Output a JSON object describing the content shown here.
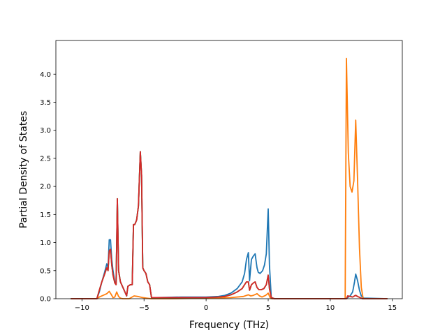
{
  "chart_data": {
    "type": "line",
    "title": "",
    "xlabel": "Frequency (THz)",
    "ylabel": "Partial Density of States",
    "xlim": [
      -12.1,
      15.8
    ],
    "ylim": [
      0,
      4.6
    ],
    "grid": false,
    "x_ticks": [
      -10,
      -5,
      0,
      5,
      10,
      15
    ],
    "x_tick_labels": [
      "−10",
      "−5",
      "0",
      "5",
      "10",
      "15"
    ],
    "y_ticks": [
      0.0,
      0.5,
      1.0,
      1.5,
      2.0,
      2.5,
      3.0,
      3.5,
      4.0
    ],
    "y_tick_labels": [
      "0.0",
      "0.5",
      "1.0",
      "1.5",
      "2.0",
      "2.5",
      "3.0",
      "3.5",
      "4.0"
    ],
    "series": [
      {
        "color": "#1f77b4",
        "points": [
          [
            -10.9,
            0
          ],
          [
            -8.8,
            0
          ],
          [
            -8.6,
            0.12
          ],
          [
            -8.4,
            0.3
          ],
          [
            -8.2,
            0.45
          ],
          [
            -8.0,
            0.62
          ],
          [
            -7.9,
            0.55
          ],
          [
            -7.8,
            1.05
          ],
          [
            -7.7,
            1.05
          ],
          [
            -7.6,
            0.7
          ],
          [
            -7.5,
            0.5
          ],
          [
            -7.35,
            0.3
          ],
          [
            -7.25,
            0.28
          ],
          [
            -7.15,
            1.78
          ],
          [
            -7.05,
            0.5
          ],
          [
            -6.9,
            0.3
          ],
          [
            -6.7,
            0.2
          ],
          [
            -6.5,
            0.1
          ],
          [
            -6.4,
            0.05
          ],
          [
            -6.3,
            0.22
          ],
          [
            -6.1,
            0.25
          ],
          [
            -5.95,
            0.25
          ],
          [
            -5.85,
            1.32
          ],
          [
            -5.75,
            1.32
          ],
          [
            -5.6,
            1.4
          ],
          [
            -5.45,
            1.65
          ],
          [
            -5.3,
            2.62
          ],
          [
            -5.2,
            2.2
          ],
          [
            -5.1,
            0.55
          ],
          [
            -5.0,
            0.5
          ],
          [
            -4.85,
            0.45
          ],
          [
            -4.7,
            0.3
          ],
          [
            -4.55,
            0.25
          ],
          [
            -4.4,
            0.02
          ],
          [
            -4.0,
            0.02
          ],
          [
            -2.0,
            0.03
          ],
          [
            0,
            0.03
          ],
          [
            1.0,
            0.04
          ],
          [
            1.5,
            0.06
          ],
          [
            2.0,
            0.1
          ],
          [
            2.5,
            0.18
          ],
          [
            2.9,
            0.3
          ],
          [
            3.1,
            0.45
          ],
          [
            3.25,
            0.7
          ],
          [
            3.4,
            0.82
          ],
          [
            3.5,
            0.32
          ],
          [
            3.65,
            0.7
          ],
          [
            3.8,
            0.76
          ],
          [
            3.95,
            0.8
          ],
          [
            4.1,
            0.55
          ],
          [
            4.2,
            0.47
          ],
          [
            4.35,
            0.45
          ],
          [
            4.55,
            0.5
          ],
          [
            4.7,
            0.6
          ],
          [
            4.85,
            0.8
          ],
          [
            5.0,
            1.6
          ],
          [
            5.1,
            0.6
          ],
          [
            5.25,
            0.02
          ],
          [
            5.5,
            0
          ],
          [
            11.3,
            0
          ],
          [
            11.4,
            0.02
          ],
          [
            11.6,
            0.05
          ],
          [
            11.8,
            0.12
          ],
          [
            11.95,
            0.3
          ],
          [
            12.05,
            0.44
          ],
          [
            12.2,
            0.32
          ],
          [
            12.35,
            0.15
          ],
          [
            12.5,
            0.05
          ],
          [
            12.7,
            0.01
          ],
          [
            14.6,
            0
          ]
        ]
      },
      {
        "color": "#ff7f0e",
        "points": [
          [
            -10.9,
            0
          ],
          [
            -8.8,
            0
          ],
          [
            -8.6,
            0.03
          ],
          [
            -8.3,
            0.06
          ],
          [
            -8.0,
            0.09
          ],
          [
            -7.8,
            0.13
          ],
          [
            -7.65,
            0.08
          ],
          [
            -7.5,
            0.02
          ],
          [
            -7.35,
            0.03
          ],
          [
            -7.2,
            0.12
          ],
          [
            -7.05,
            0.04
          ],
          [
            -6.9,
            0.01
          ],
          [
            -6.7,
            0
          ],
          [
            -6.2,
            0
          ],
          [
            -5.8,
            0.05
          ],
          [
            -5.5,
            0.04
          ],
          [
            -5.3,
            0.03
          ],
          [
            -5.1,
            0.02
          ],
          [
            -4.8,
            0.01
          ],
          [
            -4.4,
            0
          ],
          [
            -3.0,
            0
          ],
          [
            0,
            0.01
          ],
          [
            2.0,
            0.02
          ],
          [
            3.0,
            0.04
          ],
          [
            3.4,
            0.07
          ],
          [
            3.6,
            0.05
          ],
          [
            3.8,
            0.06
          ],
          [
            4.1,
            0.09
          ],
          [
            4.3,
            0.05
          ],
          [
            4.5,
            0.03
          ],
          [
            4.8,
            0.06
          ],
          [
            5.0,
            0.1
          ],
          [
            5.15,
            0.02
          ],
          [
            5.3,
            0
          ],
          [
            11.2,
            0
          ],
          [
            11.3,
            4.28
          ],
          [
            11.45,
            2.6
          ],
          [
            11.6,
            2.0
          ],
          [
            11.75,
            1.9
          ],
          [
            11.9,
            2.1
          ],
          [
            12.05,
            3.18
          ],
          [
            12.2,
            2.1
          ],
          [
            12.35,
            0.9
          ],
          [
            12.5,
            0.2
          ],
          [
            12.65,
            0
          ],
          [
            14.6,
            0
          ]
        ]
      },
      {
        "color": "#2ca02c",
        "points": [
          [
            -10.9,
            0
          ],
          [
            -8.8,
            0
          ],
          [
            -8.6,
            0.15
          ],
          [
            -8.4,
            0.3
          ],
          [
            -8.2,
            0.42
          ],
          [
            -8.0,
            0.55
          ],
          [
            -7.9,
            0.5
          ],
          [
            -7.8,
            0.85
          ],
          [
            -7.7,
            0.88
          ],
          [
            -7.6,
            0.6
          ],
          [
            -7.5,
            0.42
          ],
          [
            -7.35,
            0.28
          ],
          [
            -7.25,
            0.25
          ],
          [
            -7.15,
            1.78
          ],
          [
            -7.05,
            0.5
          ],
          [
            -6.9,
            0.3
          ],
          [
            -6.7,
            0.2
          ],
          [
            -6.5,
            0.1
          ],
          [
            -6.4,
            0.05
          ],
          [
            -6.3,
            0.22
          ],
          [
            -6.1,
            0.25
          ],
          [
            -5.95,
            0.25
          ],
          [
            -5.85,
            1.32
          ],
          [
            -5.75,
            1.32
          ],
          [
            -5.6,
            1.4
          ],
          [
            -5.45,
            1.65
          ],
          [
            -5.3,
            2.62
          ],
          [
            -5.2,
            2.2
          ],
          [
            -5.1,
            0.55
          ],
          [
            -5.0,
            0.5
          ],
          [
            -4.85,
            0.45
          ],
          [
            -4.7,
            0.3
          ],
          [
            -4.55,
            0.25
          ],
          [
            -4.4,
            0.02
          ],
          [
            -4.0,
            0.02
          ],
          [
            -2.0,
            0.02
          ],
          [
            0,
            0.02
          ],
          [
            1.0,
            0.03
          ],
          [
            1.5,
            0.04
          ],
          [
            2.0,
            0.07
          ],
          [
            2.5,
            0.12
          ],
          [
            2.9,
            0.18
          ],
          [
            3.1,
            0.25
          ],
          [
            3.25,
            0.3
          ],
          [
            3.4,
            0.3
          ],
          [
            3.5,
            0.15
          ],
          [
            3.65,
            0.25
          ],
          [
            3.8,
            0.28
          ],
          [
            3.95,
            0.3
          ],
          [
            4.1,
            0.2
          ],
          [
            4.25,
            0.16
          ],
          [
            4.45,
            0.16
          ],
          [
            4.65,
            0.18
          ],
          [
            4.85,
            0.25
          ],
          [
            5.0,
            0.42
          ],
          [
            5.1,
            0.18
          ],
          [
            5.25,
            0.02
          ],
          [
            5.5,
            0
          ],
          [
            11.3,
            0
          ],
          [
            11.4,
            0.05
          ],
          [
            11.6,
            0.04
          ],
          [
            11.8,
            0.03
          ],
          [
            11.95,
            0.05
          ],
          [
            12.05,
            0.06
          ],
          [
            12.2,
            0.04
          ],
          [
            12.4,
            0.02
          ],
          [
            12.6,
            0
          ],
          [
            14.6,
            0
          ]
        ]
      },
      {
        "color": "#d62728",
        "points": [
          [
            -10.9,
            0
          ],
          [
            -8.8,
            0
          ],
          [
            -8.6,
            0.15
          ],
          [
            -8.4,
            0.3
          ],
          [
            -8.2,
            0.42
          ],
          [
            -8.0,
            0.55
          ],
          [
            -7.9,
            0.5
          ],
          [
            -7.8,
            0.85
          ],
          [
            -7.7,
            0.88
          ],
          [
            -7.6,
            0.6
          ],
          [
            -7.5,
            0.42
          ],
          [
            -7.35,
            0.28
          ],
          [
            -7.25,
            0.25
          ],
          [
            -7.15,
            1.78
          ],
          [
            -7.05,
            0.5
          ],
          [
            -6.9,
            0.3
          ],
          [
            -6.7,
            0.2
          ],
          [
            -6.5,
            0.1
          ],
          [
            -6.4,
            0.05
          ],
          [
            -6.3,
            0.22
          ],
          [
            -6.1,
            0.25
          ],
          [
            -5.95,
            0.25
          ],
          [
            -5.85,
            1.32
          ],
          [
            -5.75,
            1.32
          ],
          [
            -5.6,
            1.4
          ],
          [
            -5.45,
            1.65
          ],
          [
            -5.3,
            2.62
          ],
          [
            -5.2,
            2.2
          ],
          [
            -5.1,
            0.55
          ],
          [
            -5.0,
            0.5
          ],
          [
            -4.85,
            0.45
          ],
          [
            -4.7,
            0.3
          ],
          [
            -4.55,
            0.25
          ],
          [
            -4.4,
            0.02
          ],
          [
            -4.0,
            0.02
          ],
          [
            -2.0,
            0.02
          ],
          [
            0,
            0.02
          ],
          [
            1.0,
            0.03
          ],
          [
            1.5,
            0.04
          ],
          [
            2.0,
            0.07
          ],
          [
            2.5,
            0.12
          ],
          [
            2.9,
            0.18
          ],
          [
            3.1,
            0.25
          ],
          [
            3.25,
            0.3
          ],
          [
            3.4,
            0.3
          ],
          [
            3.5,
            0.15
          ],
          [
            3.65,
            0.25
          ],
          [
            3.8,
            0.28
          ],
          [
            3.95,
            0.3
          ],
          [
            4.1,
            0.2
          ],
          [
            4.25,
            0.16
          ],
          [
            4.45,
            0.16
          ],
          [
            4.65,
            0.18
          ],
          [
            4.85,
            0.25
          ],
          [
            5.0,
            0.42
          ],
          [
            5.1,
            0.18
          ],
          [
            5.25,
            0.02
          ],
          [
            5.5,
            0
          ],
          [
            11.3,
            0
          ],
          [
            11.4,
            0.05
          ],
          [
            11.6,
            0.04
          ],
          [
            11.8,
            0.03
          ],
          [
            11.95,
            0.05
          ],
          [
            12.05,
            0.06
          ],
          [
            12.2,
            0.04
          ],
          [
            12.4,
            0.02
          ],
          [
            12.6,
            0
          ],
          [
            14.6,
            0
          ]
        ]
      }
    ]
  }
}
